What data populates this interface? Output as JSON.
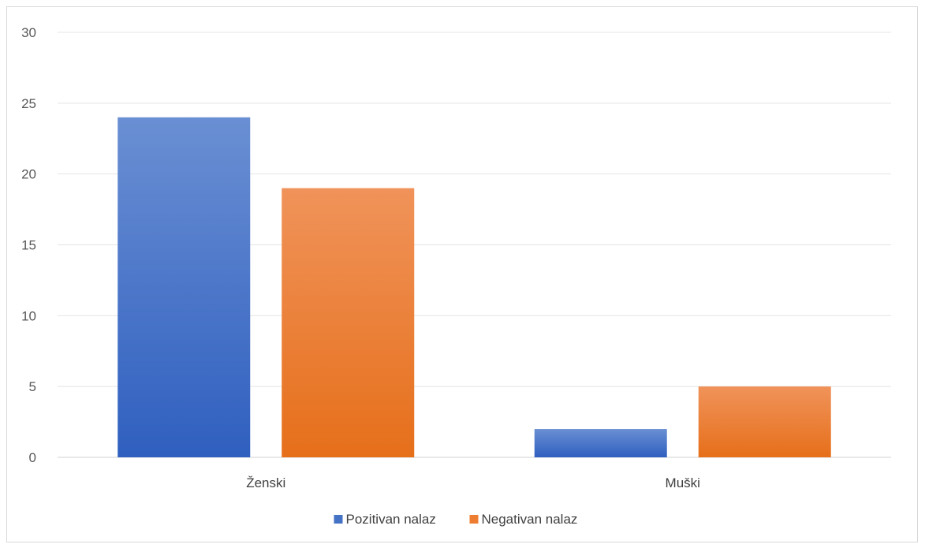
{
  "chart_data": {
    "type": "bar",
    "title": "",
    "xlabel": "",
    "ylabel": "",
    "categories": [
      "Ženski",
      "Muški"
    ],
    "series": [
      {
        "name": "Pozitivan nalaz",
        "values": [
          24,
          2
        ],
        "color": "#4472C4"
      },
      {
        "name": "Negativan nalaz",
        "values": [
          19,
          5
        ],
        "color": "#ED7D31"
      }
    ],
    "ylim": [
      0,
      30
    ],
    "yticks": [
      0,
      5,
      10,
      15,
      20,
      25,
      30
    ],
    "grid": true,
    "legend": "bottom"
  }
}
